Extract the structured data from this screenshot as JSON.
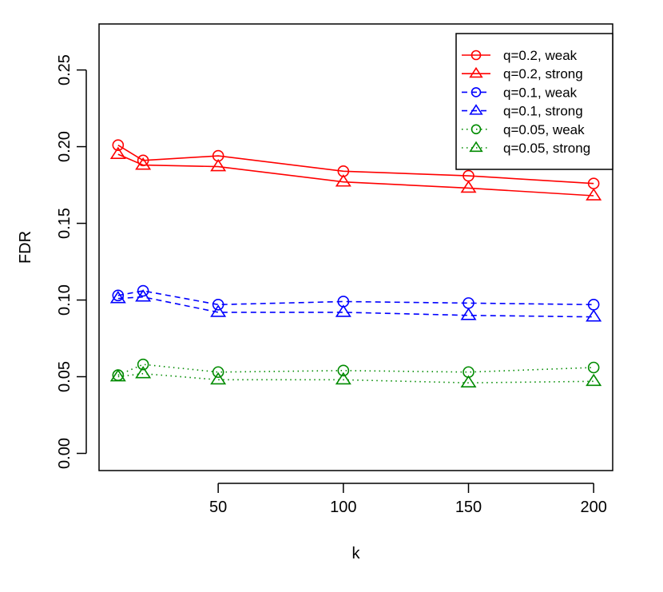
{
  "chart_data": {
    "type": "line",
    "title": "",
    "xlabel": "k",
    "ylabel": "FDR",
    "xlim": [
      2.4,
      207.6
    ],
    "ylim": [
      -0.0112,
      0.28
    ],
    "x_ticks": [
      50,
      100,
      150,
      200
    ],
    "x_tick_labels": [
      "50",
      "100",
      "150",
      "200"
    ],
    "y_ticks": [
      0.0,
      0.05,
      0.1,
      0.15,
      0.2,
      0.25
    ],
    "y_tick_labels": [
      "0.00",
      "0.05",
      "0.10",
      "0.15",
      "0.20",
      "0.25"
    ],
    "grid": false,
    "legend_position": "top-right",
    "x": [
      10,
      20,
      50,
      100,
      150,
      200
    ],
    "series": [
      {
        "name": "q=0.2, weak",
        "color": "#FF0000",
        "line": "solid",
        "marker": "circle",
        "values": [
          0.201,
          0.191,
          0.194,
          0.184,
          0.181,
          0.176
        ]
      },
      {
        "name": "q=0.2, strong",
        "color": "#FF0000",
        "line": "solid",
        "marker": "triangle",
        "values": [
          0.195,
          0.188,
          0.187,
          0.177,
          0.173,
          0.168
        ]
      },
      {
        "name": "q=0.1, weak",
        "color": "#0000FF",
        "line": "dashed",
        "marker": "circle",
        "values": [
          0.103,
          0.106,
          0.097,
          0.099,
          0.098,
          0.097
        ]
      },
      {
        "name": "q=0.1, strong",
        "color": "#0000FF",
        "line": "dashed",
        "marker": "triangle",
        "values": [
          0.101,
          0.102,
          0.092,
          0.092,
          0.09,
          0.089
        ]
      },
      {
        "name": "q=0.05, weak",
        "color": "#008B00",
        "line": "dotted",
        "marker": "circle",
        "values": [
          0.051,
          0.058,
          0.053,
          0.054,
          0.053,
          0.056
        ]
      },
      {
        "name": "q=0.05, strong",
        "color": "#008B00",
        "line": "dotted",
        "marker": "triangle",
        "values": [
          0.05,
          0.052,
          0.048,
          0.048,
          0.046,
          0.047
        ]
      }
    ]
  }
}
